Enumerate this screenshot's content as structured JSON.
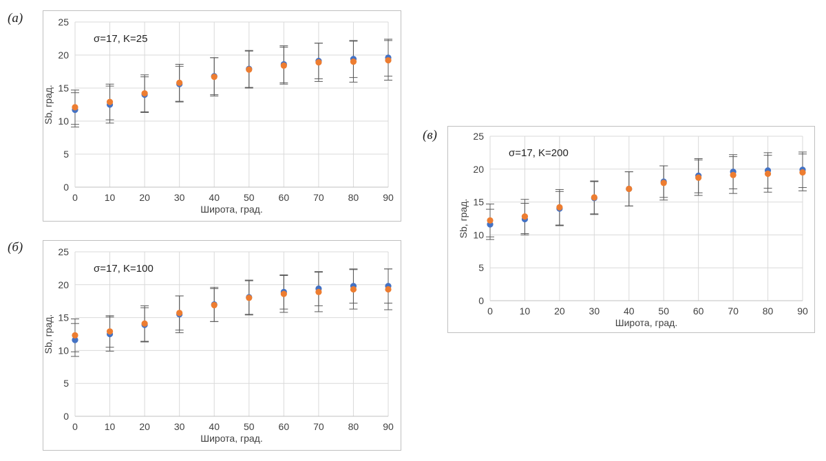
{
  "colors": {
    "series1": "#4472c4",
    "series2": "#ed7d31",
    "grid": "#d9d9d9",
    "errorbar": "#595959",
    "frame": "#bfbfbf"
  },
  "chart_data": [
    {
      "panel": "(а)",
      "type": "scatter",
      "annotation": "σ=17, K=25",
      "xlabel": "Широта, град.",
      "ylabel": "Sb, град.",
      "x": [
        0,
        10,
        20,
        30,
        40,
        50,
        60,
        70,
        80,
        90
      ],
      "xlim": [
        0,
        90
      ],
      "ylim": [
        0,
        25
      ],
      "xticks": [
        "0",
        "10",
        "20",
        "30",
        "40",
        "50",
        "60",
        "70",
        "80",
        "90"
      ],
      "yticks": [
        "0",
        "5",
        "10",
        "15",
        "20",
        "25"
      ],
      "grid": true,
      "series": [
        {
          "values": [
            11.7,
            12.5,
            14.0,
            15.6,
            16.8,
            17.9,
            18.6,
            19.1,
            19.4,
            19.6
          ],
          "errors": [
            2.6,
            2.8,
            2.7,
            2.7,
            2.8,
            2.8,
            2.8,
            2.7,
            2.8,
            2.8
          ]
        },
        {
          "values": [
            12.1,
            12.9,
            14.2,
            15.8,
            16.7,
            17.8,
            18.4,
            18.9,
            19.0,
            19.2
          ],
          "errors": [
            2.6,
            2.7,
            2.8,
            2.8,
            2.9,
            2.8,
            2.8,
            2.9,
            3.1,
            3.0
          ]
        }
      ]
    },
    {
      "panel": "(б)",
      "type": "scatter",
      "annotation": "σ=17, K=100",
      "xlabel": "Широта, град.",
      "ylabel": "Sb, град.",
      "x": [
        0,
        10,
        20,
        30,
        40,
        50,
        60,
        70,
        80,
        90
      ],
      "xlim": [
        0,
        90
      ],
      "ylim": [
        0,
        25
      ],
      "xticks": [
        "0",
        "10",
        "20",
        "30",
        "40",
        "50",
        "60",
        "70",
        "80",
        "90"
      ],
      "yticks": [
        "0",
        "5",
        "10",
        "15",
        "20",
        "25"
      ],
      "grid": true,
      "series": [
        {
          "values": [
            11.6,
            12.5,
            13.9,
            15.5,
            17.0,
            18.1,
            18.9,
            19.4,
            19.8,
            19.8
          ],
          "errors": [
            2.5,
            2.6,
            2.6,
            2.8,
            2.6,
            2.6,
            2.6,
            2.6,
            2.6,
            2.6
          ]
        },
        {
          "values": [
            12.3,
            12.9,
            14.1,
            15.7,
            16.9,
            18.0,
            18.6,
            18.9,
            19.3,
            19.3
          ],
          "errors": [
            2.5,
            2.4,
            2.7,
            2.6,
            2.5,
            2.6,
            2.8,
            3.0,
            3.0,
            3.1
          ]
        }
      ]
    },
    {
      "panel": "(в)",
      "type": "scatter",
      "annotation": "σ=17, K=200",
      "xlabel": "Широта, град.",
      "ylabel": "Sb, град.",
      "x": [
        0,
        10,
        20,
        30,
        40,
        50,
        60,
        70,
        80,
        90
      ],
      "xlim": [
        0,
        90
      ],
      "ylim": [
        0,
        25
      ],
      "xticks": [
        "0",
        "10",
        "20",
        "30",
        "40",
        "50",
        "60",
        "70",
        "80",
        "90"
      ],
      "yticks": [
        "0",
        "5",
        "10",
        "15",
        "20",
        "25"
      ],
      "grid": true,
      "series": [
        {
          "values": [
            11.6,
            12.4,
            14.0,
            15.6,
            17.0,
            18.1,
            19.0,
            19.6,
            19.8,
            19.9
          ],
          "errors": [
            2.3,
            2.4,
            2.6,
            2.5,
            2.6,
            2.4,
            2.6,
            2.6,
            2.7,
            2.7
          ]
        },
        {
          "values": [
            12.2,
            12.8,
            14.2,
            15.7,
            17.0,
            17.9,
            18.7,
            19.1,
            19.3,
            19.5
          ],
          "errors": [
            2.5,
            2.6,
            2.7,
            2.5,
            2.6,
            2.6,
            2.7,
            2.8,
            2.8,
            2.8
          ]
        }
      ]
    }
  ]
}
